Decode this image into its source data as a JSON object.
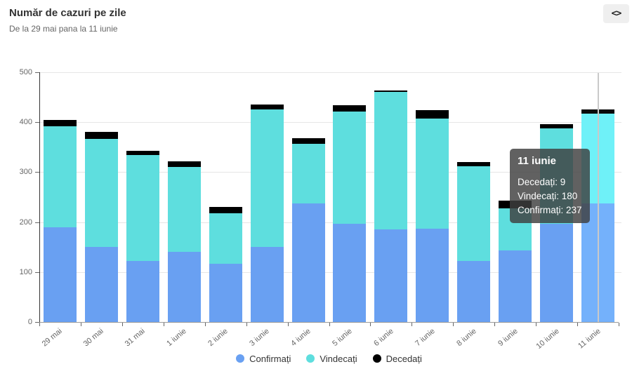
{
  "header": {
    "title": "Număr de cazuri pe zile",
    "subtitle": "De la 29 mai pana la 11 iunie",
    "embed_icon": "<>"
  },
  "chart_data": {
    "type": "bar",
    "stacked": true,
    "title": "Număr de cazuri pe zile",
    "subtitle": "De la 29 mai pana la 11 iunie",
    "categories": [
      "29 mai",
      "30 mai",
      "31 mai",
      "1 iunie",
      "2 iunie",
      "3 iunie",
      "4 iunie",
      "5 iunie",
      "6 iunie",
      "7 iunie",
      "8 iunie",
      "9 iunie",
      "10 iunie",
      "11 iunie"
    ],
    "series": [
      {
        "name": "Confirmați",
        "color": "#69A0F2",
        "hover_color": "#74B1FB",
        "values": [
          190,
          150,
          122,
          140,
          117,
          150,
          238,
          196,
          185,
          187,
          122,
          143,
          196,
          237
        ]
      },
      {
        "name": "Vindecați",
        "color": "#5EDEDE",
        "hover_color": "#6FF1F8",
        "values": [
          202,
          217,
          212,
          170,
          100,
          276,
          119,
          225,
          275,
          220,
          190,
          85,
          191,
          180
        ]
      },
      {
        "name": "Decedați",
        "color": "#000000",
        "hover_color": "#0a0a0a",
        "values": [
          13,
          14,
          8,
          12,
          13,
          10,
          11,
          13,
          4,
          17,
          8,
          15,
          9,
          9
        ]
      }
    ],
    "ylim": [
      0,
      500
    ],
    "yticks": [
      0,
      100,
      200,
      300,
      400,
      500
    ],
    "grid": true,
    "legend_position": "bottom",
    "highlighted_category_index": 13
  },
  "tooltip": {
    "title": "11 iunie",
    "lines": [
      {
        "label": "Decedați",
        "value": "9"
      },
      {
        "label": "Vindecați",
        "value": "180"
      },
      {
        "label": "Confirmați",
        "value": "237"
      }
    ]
  }
}
